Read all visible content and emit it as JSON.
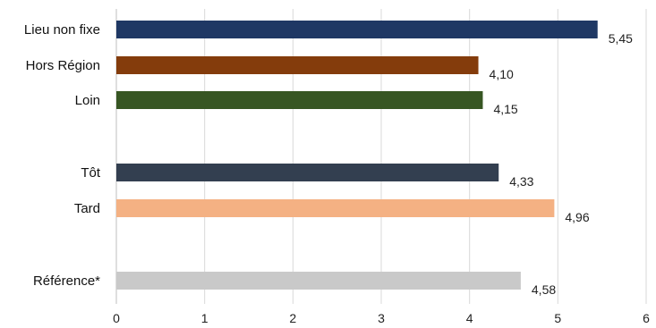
{
  "chart_data": {
    "type": "bar",
    "orientation": "horizontal",
    "title": "",
    "xlabel": "",
    "ylabel": "",
    "xlim": [
      0,
      6
    ],
    "x_ticks": [
      "0",
      "1",
      "2",
      "3",
      "4",
      "5",
      "6"
    ],
    "grid": "vertical",
    "legend": "none",
    "categories": [
      "Lieu non fixe",
      "Hors Région",
      "Loin",
      "Tôt",
      "Tard",
      "Référence*"
    ],
    "values": [
      5.45,
      4.1,
      4.15,
      4.33,
      4.96,
      4.58
    ],
    "data_labels": [
      "5,45",
      "4,10",
      "4,15",
      "4,33",
      "4,96",
      "4,58"
    ],
    "bar_colors": [
      "#1f3864",
      "#843c0c",
      "#375623",
      "#333f50",
      "#f4b183",
      "#c9c9c9"
    ]
  }
}
